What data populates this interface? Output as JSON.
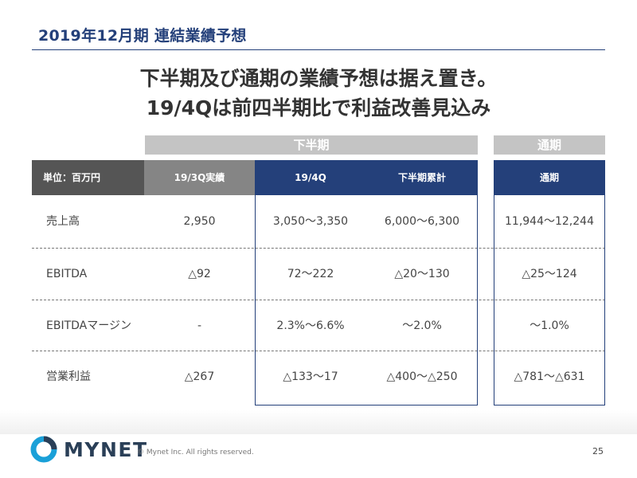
{
  "header": {
    "title": "2019年12月期 連結業績予想"
  },
  "headline": {
    "line1": "下半期及び通期の業績予想は据え置き。",
    "line2": "19/4Qは前四半期比で利益改善見込み"
  },
  "bands": {
    "half": "下半期",
    "full": "通期"
  },
  "columns": {
    "unit": "単位：百万円",
    "q3_actual": "19/3Q実績",
    "q4": "19/4Q",
    "half_cum": "下半期累計",
    "full_year": "通期"
  },
  "rows": [
    {
      "label": "売上高",
      "q3": "2,950",
      "q4": "3,050〜3,350",
      "half": "6,000〜6,300",
      "full": "11,944〜12,244"
    },
    {
      "label": "EBITDA",
      "q3": "△92",
      "q4": "72〜222",
      "half": "△20〜130",
      "full": "△25〜124"
    },
    {
      "label": "EBITDAマージン",
      "q3": "-",
      "q4": "2.3%〜6.6%",
      "half": "〜2.0%",
      "full": "〜1.0%"
    },
    {
      "label": "営業利益",
      "q3": "△267",
      "q4": "△133〜17",
      "half": "△400〜△250",
      "full": "△781〜△631"
    }
  ],
  "footer": {
    "brand": "MYNET",
    "logo_icon": "ring-logo-icon",
    "copyright": "© Mynet Inc. All rights reserved.",
    "page": "25"
  },
  "colors": {
    "navy": "#24407a",
    "band_gray": "#c4c4c4",
    "dark_gray": "#555555",
    "mid_gray": "#858585",
    "logo_blue": "#1aa0d8",
    "logo_dark": "#2a3f57"
  }
}
